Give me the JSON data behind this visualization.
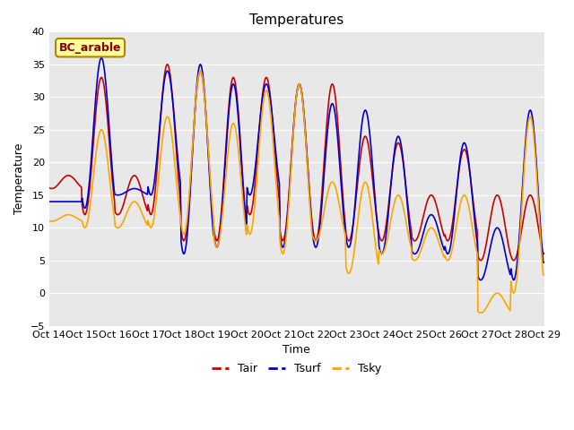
{
  "title": "Temperatures",
  "xlabel": "Time",
  "ylabel": "Temperature",
  "ylim": [
    -5,
    40
  ],
  "xlim_start": 0,
  "xlim_end": 360,
  "tick_positions": [
    0,
    24,
    48,
    72,
    96,
    120,
    144,
    168,
    192,
    216,
    240,
    264,
    288,
    312,
    336,
    360
  ],
  "tick_labels": [
    "Oct 14",
    "Oct 15",
    "Oct 16",
    "Oct 17",
    "Oct 18",
    "Oct 19",
    "Oct 20",
    "Oct 21",
    "Oct 22",
    "Oct 23",
    "Oct 24",
    "Oct 25",
    "Oct 26",
    "Oct 27",
    "Oct 28",
    "Oct 29"
  ],
  "line_colors": {
    "Tair": "#cc0000",
    "Tsurf": "#0000cc",
    "Tsky": "#ffa500"
  },
  "annotation_text": "BC_arable",
  "annotation_facecolor": "#ffff99",
  "annotation_edgecolor": "#aa8800",
  "annotation_textcolor": "#8b0000",
  "fig_facecolor": "#ffffff",
  "axes_facecolor": "#e8e8e8",
  "title_fontsize": 11,
  "axis_label_fontsize": 9,
  "tick_fontsize": 8,
  "legend_fontsize": 9,
  "yticks": [
    -5,
    0,
    5,
    10,
    15,
    20,
    25,
    30,
    35,
    40
  ],
  "day_peaks_tair": [
    18,
    33,
    18,
    35,
    34,
    33,
    33,
    32,
    32,
    24,
    23,
    15,
    22,
    15,
    15,
    8
  ],
  "day_mins_tair": [
    16,
    12,
    12,
    12,
    8,
    8,
    12,
    8,
    8,
    8,
    8,
    8,
    8,
    5,
    5,
    7
  ],
  "day_peaks_tsurf": [
    14,
    36,
    16,
    34,
    35,
    32,
    32,
    32,
    29,
    28,
    24,
    12,
    23,
    10,
    28,
    8
  ],
  "day_mins_tsurf": [
    14,
    13,
    15,
    15,
    6,
    7,
    15,
    7,
    7,
    7,
    6,
    6,
    6,
    2,
    2,
    7
  ],
  "day_peaks_tsky": [
    12,
    25,
    14,
    27,
    34,
    26,
    31,
    32,
    17,
    17,
    15,
    10,
    15,
    0,
    27,
    0
  ],
  "day_mins_tsky": [
    11,
    10,
    10,
    10,
    9,
    7,
    9,
    6,
    8,
    3,
    6,
    5,
    5,
    -3,
    0,
    1
  ],
  "peak_hour": 14,
  "min_hour": 5
}
